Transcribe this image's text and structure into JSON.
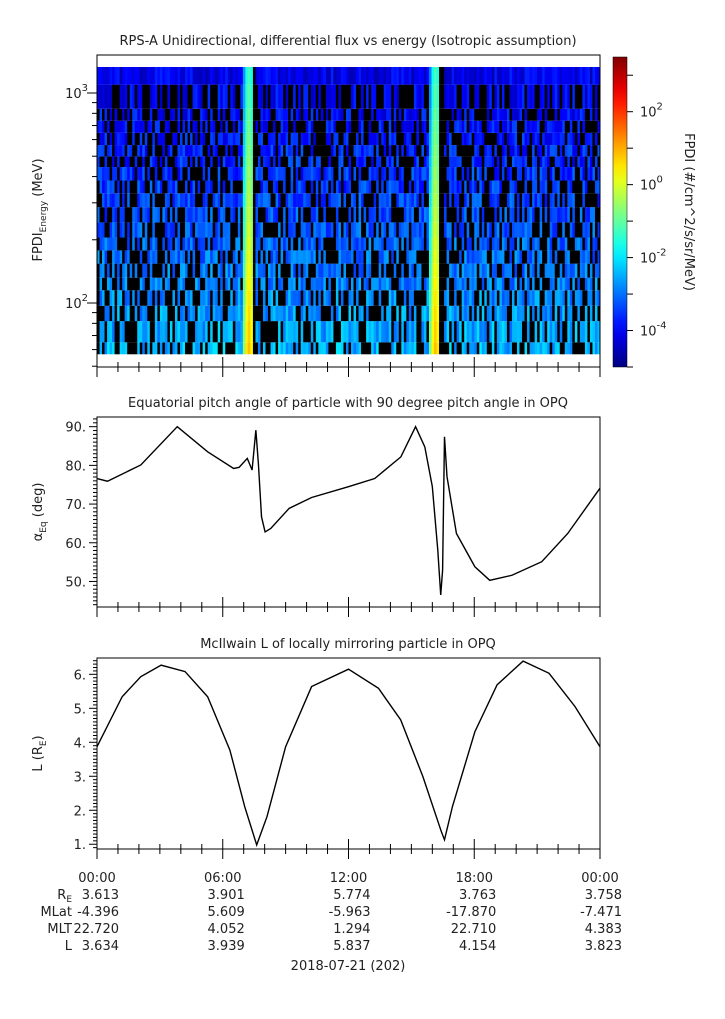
{
  "chart_data": [
    {
      "type": "heatmap",
      "title": "RPS-A Unidirectional, differential flux vs energy (Isotropic assumption)",
      "ylabel": {
        "main": "FPDI",
        "sub": "Energy",
        "unit": " (MeV)"
      },
      "yscale": "log",
      "ylim": [
        49.5,
        1517
      ],
      "xlim_hours": [
        0,
        24
      ],
      "yticks": [
        {
          "base": "10",
          "exp": "3",
          "value": 1000
        },
        {
          "base": "10",
          "exp": "2",
          "value": 100
        }
      ],
      "energy_bin_edges_mev": [
        57,
        65,
        82,
        97,
        115,
        132,
        154,
        178,
        205,
        242,
        286,
        333,
        383,
        444,
        499,
        565,
        646,
        738,
        841,
        1096,
        1330
      ],
      "bright_bands_hours": [
        7.25,
        16.15
      ],
      "gap_hours": [
        7.5,
        16.45
      ],
      "colorbar": {
        "label": "FPDI (#/cm^2/s/sr/MeV)",
        "scale": "log",
        "range_log10": [
          -5,
          3.5
        ],
        "ticks": [
          {
            "base": "10",
            "exp": "2",
            "value": 2
          },
          {
            "base": "10",
            "exp": "0",
            "value": 0
          },
          {
            "base": "10",
            "exp": "-2",
            "value": -2
          },
          {
            "base": "10",
            "exp": "-4",
            "value": -4
          }
        ]
      }
    },
    {
      "type": "line",
      "title": "Equatorial pitch angle of particle with 90 degree pitch angle in OPQ",
      "ylabel": {
        "main": "α",
        "sub": "Eq",
        "unit": " (deg)"
      },
      "ylim": [
        43.4,
        92.5
      ],
      "yticks": [
        "90.",
        "80.",
        "70.",
        "60.",
        "50."
      ],
      "ytick_values": [
        90,
        80,
        70,
        60,
        50
      ],
      "x_hours": [
        0,
        0.5,
        2.09,
        3.83,
        5.28,
        6.52,
        6.78,
        7.17,
        7.4,
        7.58,
        7.7,
        7.85,
        8.02,
        8.29,
        9.17,
        10.24,
        12.0,
        13.25,
        14.5,
        15.2,
        15.64,
        16.0,
        16.26,
        16.4,
        16.49,
        16.58,
        16.7,
        17.15,
        18.03,
        18.74,
        19.8,
        21.22,
        22.46,
        24
      ],
      "y": [
        76.6,
        75.9,
        80.1,
        90.0,
        83.5,
        79.2,
        79.5,
        81.8,
        78.8,
        89.1,
        80.5,
        66.7,
        62.8,
        63.7,
        68.9,
        71.7,
        74.5,
        76.6,
        82.2,
        90.0,
        84.8,
        74.5,
        58.1,
        46.5,
        52.9,
        87.4,
        77.1,
        62.4,
        53.8,
        50.3,
        51.6,
        55.1,
        62.4,
        74.1
      ]
    },
    {
      "type": "line",
      "title": "McIlwain L of locally mirroring particle in OPQ",
      "ylabel": {
        "main": "L (R",
        "sub": "E",
        "unit": ")"
      },
      "ylim": [
        0.86,
        6.48
      ],
      "yticks": [
        "6.",
        "5.",
        "4.",
        "3.",
        "2.",
        "1."
      ],
      "ytick_values": [
        6,
        5,
        4,
        3,
        2,
        1
      ],
      "x_hours": [
        0,
        1.2,
        2.09,
        3.06,
        4.2,
        5.28,
        6.34,
        7.05,
        7.62,
        8.11,
        9.0,
        10.24,
        12.0,
        13.43,
        14.49,
        15.55,
        16.43,
        16.58,
        16.96,
        18.03,
        19.09,
        20.33,
        21.57,
        22.81,
        24
      ],
      "y": [
        3.87,
        5.34,
        5.93,
        6.27,
        6.08,
        5.34,
        3.77,
        2.1,
        0.98,
        1.81,
        3.87,
        5.64,
        6.15,
        5.59,
        4.66,
        2.99,
        1.37,
        1.13,
        2.11,
        4.31,
        5.69,
        6.39,
        6.03,
        5.05,
        3.87
      ]
    }
  ],
  "time_axis": {
    "labels": [
      "00:00",
      "06:00",
      "12:00",
      "18:00",
      "00:00"
    ],
    "label_hours": [
      0,
      6,
      12,
      18,
      24
    ],
    "date": "2018-07-21 (202)"
  },
  "ephemeris": {
    "rows": [
      {
        "label": "R",
        "label_sub": "E",
        "values": [
          "3.613",
          "3.901",
          "5.774",
          "3.763",
          "3.758"
        ]
      },
      {
        "label": "MLat",
        "label_sub": "",
        "values": [
          "-4.396",
          "5.609",
          "-5.963",
          "-17.870",
          "-7.471"
        ]
      },
      {
        "label": "MLT",
        "label_sub": "",
        "values": [
          "22.720",
          "4.052",
          "1.294",
          "22.710",
          "4.383"
        ]
      },
      {
        "label": "L",
        "label_sub": "",
        "values": [
          "3.634",
          "3.939",
          "5.837",
          "4.154",
          "3.823"
        ]
      }
    ]
  }
}
